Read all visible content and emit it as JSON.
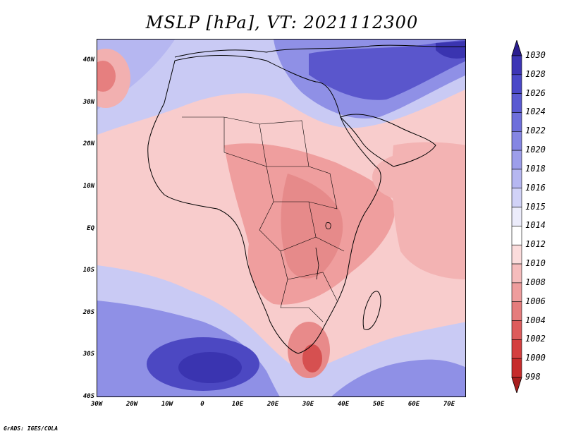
{
  "title": "MSLP [hPa], VT: 2021112300",
  "footer": "GrADS: IGES/COLA",
  "lat_labels": [
    "40N",
    "30N",
    "20N",
    "10N",
    "EQ",
    "10S",
    "20S",
    "30S",
    "40S"
  ],
  "lon_labels": [
    "30W",
    "20W",
    "10W",
    "0",
    "10E",
    "20E",
    "30E",
    "40E",
    "50E",
    "60E",
    "70E"
  ],
  "colorbar": {
    "levels": [
      "1030",
      "1028",
      "1026",
      "1024",
      "1022",
      "1020",
      "1018",
      "1016",
      "1015",
      "1014",
      "1012",
      "1010",
      "1008",
      "1006",
      "1004",
      "1002",
      "1000",
      "998"
    ],
    "colors": [
      "#2b1d8f",
      "#3d35b5",
      "#4a48c8",
      "#5a5ad2",
      "#6e6fdb",
      "#8586e3",
      "#9d9eea",
      "#b6b7f1",
      "#d1d2f7",
      "#ececfb",
      "#ffffff",
      "#fbdcdc",
      "#f5bcbc",
      "#ee9d9d",
      "#e57c7c",
      "#dd5c5c",
      "#d43f3f",
      "#c62b2b",
      "#a81e1e"
    ]
  },
  "map": {
    "colors": {
      "high_dark": "#3a34b0",
      "high_mid": "#7b7de0",
      "high_light": "#b3b4f0",
      "neutral": "#eeeefc",
      "low_light": "#f8cccc",
      "low_mid": "#ef9e9e",
      "low_dark": "#df6a6a",
      "low_deep": "#d14545"
    }
  }
}
